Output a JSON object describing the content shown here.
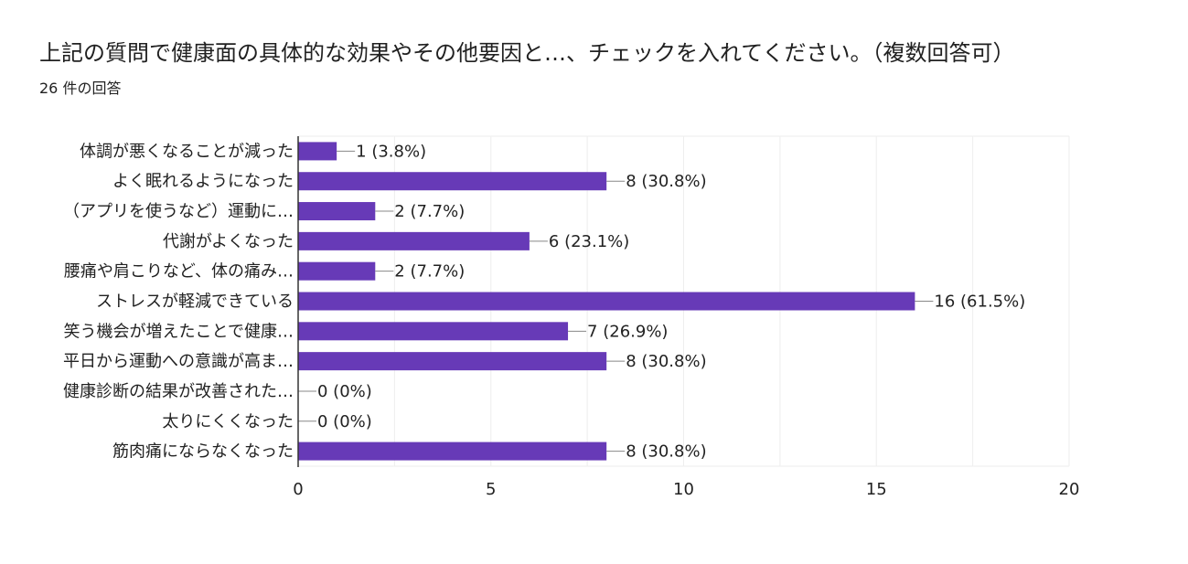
{
  "header": {
    "title": "上記の質問で健康面の具体的な効果やその他要因と…、チェックを入れてください。（複数回答可）",
    "response_count": "26 件の回答"
  },
  "colors": {
    "bar": "#673ab7",
    "grid": "#eeeeee",
    "axis": "#333333",
    "text": "#222222"
  },
  "chart_data": {
    "type": "bar",
    "orientation": "horizontal",
    "title": "上記の質問で健康面の具体的な効果やその他要因と…、チェックを入れてください。（複数回答可）",
    "subtitle": "26 件の回答",
    "categories": [
      "体調が悪くなることが減った",
      "よく眠れるようになった",
      "（アプリを使うなど）運動に…",
      "代謝がよくなった",
      "腰痛や肩こりなど、体の痛み…",
      "ストレスが軽減できている",
      "笑う機会が増えたことで健康…",
      "平日から運動への意識が高ま…",
      "健康診断の結果が改善された…",
      "太りにくくなった",
      "筋肉痛にならなくなった"
    ],
    "values": [
      1,
      8,
      2,
      6,
      2,
      16,
      7,
      8,
      0,
      0,
      8
    ],
    "data_labels": [
      "1 (3.8%)",
      "8 (30.8%)",
      "2 (7.7%)",
      "6 (23.1%)",
      "2 (7.7%)",
      "16 (61.5%)",
      "7 (26.9%)",
      "8 (30.8%)",
      "0 (0%)",
      "0 (0%)",
      "8 (30.8%)"
    ],
    "xlim": [
      0,
      20
    ],
    "xticks": [
      0,
      5,
      10,
      15,
      20
    ],
    "xtick_labels": [
      "0",
      "5",
      "10",
      "15",
      "20"
    ],
    "grid": true,
    "legend": "none"
  }
}
